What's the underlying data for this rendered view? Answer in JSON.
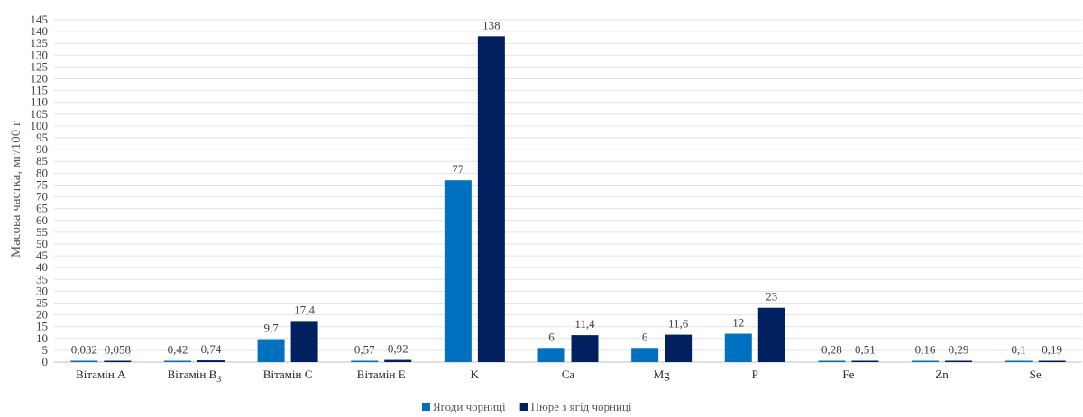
{
  "chart_data": {
    "type": "bar",
    "ylabel": "Масова частка, мг/100 г",
    "xlabel": "",
    "ylim": [
      0,
      145
    ],
    "ytick_step": 5,
    "grid": true,
    "legend_position": "bottom",
    "categories": [
      {
        "main": "Вітамін A",
        "sub": ""
      },
      {
        "main": "Вітамін B",
        "sub": "3"
      },
      {
        "main": "Вітамін C",
        "sub": ""
      },
      {
        "main": "Вітамін E",
        "sub": ""
      },
      {
        "main": "K",
        "sub": ""
      },
      {
        "main": "Ca",
        "sub": ""
      },
      {
        "main": "Mg",
        "sub": ""
      },
      {
        "main": "P",
        "sub": ""
      },
      {
        "main": "Fe",
        "sub": ""
      },
      {
        "main": "Zn",
        "sub": ""
      },
      {
        "main": "Se",
        "sub": ""
      }
    ],
    "series": [
      {
        "name": "Ягоди чорниці",
        "color": "#0070c0",
        "values": [
          0.032,
          0.42,
          9.7,
          0.57,
          77,
          6,
          6,
          12,
          0.28,
          0.16,
          0.1
        ],
        "labels": [
          "0,032",
          "0,42",
          "9,7",
          "0,57",
          "77",
          "6",
          "6",
          "12",
          "0,28",
          "0,16",
          "0,1"
        ]
      },
      {
        "name": "Пюре з ягід чорниці",
        "color": "#002060",
        "values": [
          0.058,
          0.74,
          17.4,
          0.92,
          138,
          11.4,
          11.6,
          23,
          0.51,
          0.29,
          0.19
        ],
        "labels": [
          "0,058",
          "0,74",
          "17,4",
          "0,92",
          "138",
          "11,4",
          "11,6",
          "23",
          "0,51",
          "0,29",
          "0,19"
        ]
      }
    ]
  }
}
